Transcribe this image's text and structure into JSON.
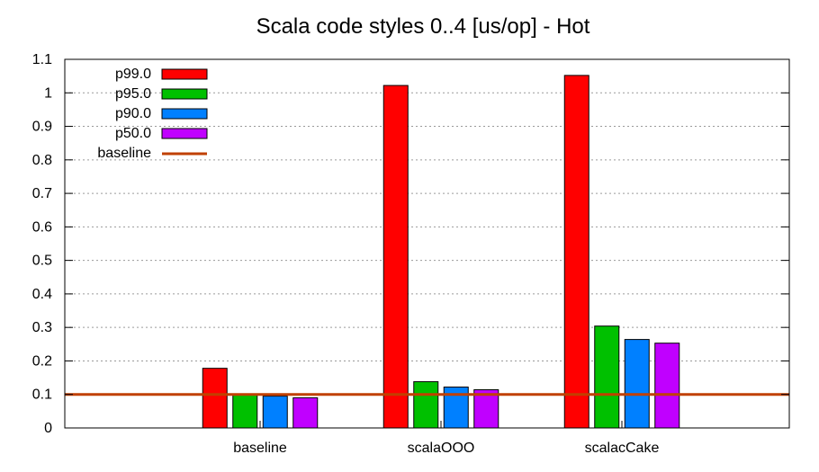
{
  "chart_data": {
    "type": "bar",
    "title": "Scala code styles 0..4 [us/op] - Hot",
    "xlabel": "",
    "ylabel": "",
    "categories": [
      "baseline",
      "scalaOOO",
      "scalacCake"
    ],
    "ylim": [
      0,
      1.1
    ],
    "yticks": [
      "0",
      "0.1",
      "0.2",
      "0.3",
      "0.4",
      "0.5",
      "0.6",
      "0.7",
      "0.8",
      "0.9",
      "1",
      "1.1"
    ],
    "grid": "horizontal dotted",
    "legend_position": "top-left",
    "series": [
      {
        "name": "p99.0",
        "color": "#ff0000",
        "values": [
          0.178,
          1.022,
          1.052
        ]
      },
      {
        "name": "p95.0",
        "color": "#00c000",
        "values": [
          0.1,
          0.138,
          0.304
        ]
      },
      {
        "name": "p90.0",
        "color": "#0080ff",
        "values": [
          0.095,
          0.122,
          0.264
        ]
      },
      {
        "name": "p50.0",
        "color": "#c000ff",
        "values": [
          0.09,
          0.114,
          0.253
        ]
      }
    ],
    "baseline": {
      "name": "baseline",
      "value": 0.1,
      "color": "#c04000"
    }
  }
}
